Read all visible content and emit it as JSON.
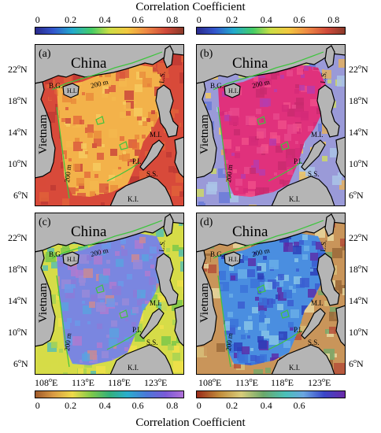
{
  "titles": {
    "top": "Correlation Coefficient",
    "bottom": "Correlation Coefficient"
  },
  "colorbars": {
    "top_left": [
      "0",
      "0.2",
      "0.4",
      "0.6",
      "0.8"
    ],
    "top_right": [
      "0",
      "0.2",
      "0.4",
      "0.6",
      "0.8"
    ],
    "bottom_left": [
      "0",
      "0.2",
      "0.4",
      "0.6",
      "0.8"
    ],
    "bottom_right": [
      "0",
      "0.2",
      "0.4",
      "0.6"
    ]
  },
  "axes": {
    "lat_labels": [
      {
        "num": "22",
        "sup": "o",
        "dir": "N"
      },
      {
        "num": "18",
        "sup": "o",
        "dir": "N"
      },
      {
        "num": "14",
        "sup": "o",
        "dir": "N"
      },
      {
        "num": "10",
        "sup": "o",
        "dir": "N"
      },
      {
        "num": "6",
        "sup": "o",
        "dir": "N"
      }
    ],
    "lon_labels": [
      {
        "num": "108",
        "sup": "o",
        "dir": "E"
      },
      {
        "num": "113",
        "sup": "o",
        "dir": "E"
      },
      {
        "num": "118",
        "sup": "o",
        "dir": "E"
      },
      {
        "num": "123",
        "sup": "o",
        "dir": "E"
      }
    ]
  },
  "map_labels": {
    "china": "China",
    "vietnam": "Vietnam",
    "bg": "B.G.",
    "hi": "H.I.",
    "isobath": "200 m",
    "isobath2": "200 m",
    "ls": "L.S.",
    "mi": "M.I.",
    "pi": "P.I.",
    "ss": "S.S.",
    "ki": "K.I."
  },
  "panels": [
    {
      "label": "(a)",
      "colormap": "warm"
    },
    {
      "label": "(b)",
      "colormap": "magenta"
    },
    {
      "label": "(c)",
      "colormap": "cool"
    },
    {
      "label": "(d)",
      "colormap": "blue"
    }
  ],
  "colors": {
    "land": "#b5b5b5",
    "isobath": "#3ec43e",
    "border": "#000000"
  }
}
